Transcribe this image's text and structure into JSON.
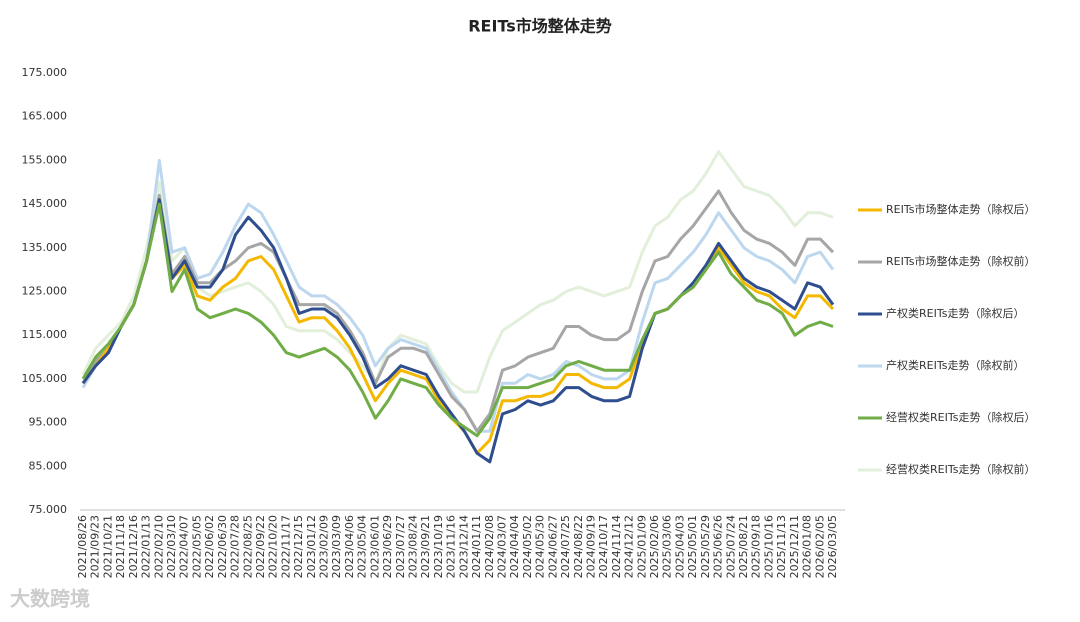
{
  "chart_data": {
    "type": "line",
    "title": "REITs市场整体走势",
    "categories": [
      "2021/08/26",
      "2021/09/23",
      "2021/10/21",
      "2021/11/18",
      "2021/12/16",
      "2022/01/13",
      "2022/02/10",
      "2022/03/10",
      "2022/04/07",
      "2022/05/05",
      "2022/06/02",
      "2022/06/30",
      "2022/07/28",
      "2022/08/25",
      "2022/09/22",
      "2022/10/20",
      "2022/11/17",
      "2022/12/15",
      "2023/01/12",
      "2023/02/09",
      "2023/03/09",
      "2023/04/06",
      "2023/05/04",
      "2023/06/01",
      "2023/06/29",
      "2023/07/27",
      "2023/08/24",
      "2023/09/21",
      "2023/10/19",
      "2023/11/16",
      "2023/12/14",
      "2024/01/11",
      "2024/02/08",
      "2024/03/07",
      "2024/04/04",
      "2024/05/02",
      "2024/05/30",
      "2024/06/27",
      "2024/07/25",
      "2024/08/22",
      "2024/09/19",
      "2024/10/17",
      "2024/11/14",
      "2024/12/12",
      "2025/01/09",
      "2025/02/06",
      "2025/03/06",
      "2025/04/03",
      "2025/05/01",
      "2025/05/29",
      "2025/06/26",
      "2025/07/24",
      "2025/08/21",
      "2025/09/18",
      "2025/10/16",
      "2025/11/13",
      "2025/12/11",
      "2026/01/08",
      "2026/02/05",
      "2026/03/05"
    ],
    "series": [
      {
        "name": "REITs市场整体走势（除权后）",
        "color": "#f5b800",
        "values": [
          104,
          108,
          112,
          117,
          122,
          132,
          146,
          128,
          131,
          124,
          123,
          126,
          128,
          132,
          133,
          130,
          124,
          118,
          119,
          119,
          116,
          112,
          106,
          100,
          104,
          107,
          106,
          105,
          100,
          96,
          93,
          88,
          91,
          100,
          100,
          101,
          101,
          102,
          106,
          106,
          104,
          103,
          103,
          105,
          113,
          120,
          121,
          124,
          126,
          130,
          135,
          131,
          127,
          125,
          124,
          121,
          119,
          124,
          124,
          121
        ]
      },
      {
        "name": "REITs市场整体走势（除权前）",
        "color": "#a6a6a6",
        "values": [
          104,
          109,
          112,
          117,
          122,
          132,
          147,
          129,
          133,
          127,
          127,
          130,
          132,
          135,
          136,
          134,
          128,
          122,
          122,
          122,
          120,
          116,
          111,
          104,
          110,
          112,
          112,
          111,
          106,
          101,
          98,
          93,
          97,
          107,
          108,
          110,
          111,
          112,
          117,
          117,
          115,
          114,
          114,
          116,
          125,
          132,
          133,
          137,
          140,
          144,
          148,
          143,
          139,
          137,
          136,
          134,
          131,
          137,
          137,
          134
        ]
      },
      {
        "name": "产权类REITs走势（除权后）",
        "color": "#2e4e8f",
        "values": [
          104,
          108,
          111,
          117,
          122,
          132,
          146,
          128,
          132,
          126,
          126,
          130,
          138,
          142,
          139,
          135,
          128,
          120,
          121,
          121,
          119,
          115,
          110,
          103,
          105,
          108,
          107,
          106,
          101,
          97,
          93,
          88,
          86,
          97,
          98,
          100,
          99,
          100,
          103,
          103,
          101,
          100,
          100,
          101,
          112,
          120,
          121,
          124,
          127,
          131,
          136,
          132,
          128,
          126,
          125,
          123,
          121,
          127,
          126,
          122
        ]
      },
      {
        "name": "产权类REITs走势（除权前）",
        "color": "#bdd7ee",
        "values": [
          103,
          108,
          111,
          117,
          122,
          132,
          155,
          134,
          135,
          128,
          129,
          134,
          140,
          145,
          143,
          138,
          132,
          126,
          124,
          124,
          122,
          119,
          115,
          108,
          112,
          114,
          113,
          112,
          107,
          102,
          98,
          93,
          93,
          104,
          104,
          106,
          105,
          106,
          109,
          108,
          106,
          105,
          105,
          107,
          118,
          127,
          128,
          131,
          134,
          138,
          143,
          139,
          135,
          133,
          132,
          130,
          127,
          133,
          134,
          130
        ]
      },
      {
        "name": "经营权类REITs走势（除权后）",
        "color": "#70ad47",
        "values": [
          105,
          110,
          113,
          117,
          122,
          132,
          145,
          125,
          130,
          121,
          119,
          120,
          121,
          120,
          118,
          115,
          111,
          110,
          111,
          112,
          110,
          107,
          102,
          96,
          100,
          105,
          104,
          103,
          99,
          96,
          94,
          92,
          96,
          103,
          103,
          103,
          104,
          105,
          108,
          109,
          108,
          107,
          107,
          107,
          114,
          120,
          121,
          124,
          126,
          130,
          134,
          129,
          126,
          123,
          122,
          120,
          115,
          117,
          118,
          117
        ]
      },
      {
        "name": "经营权类REITs走势（除权前）",
        "color": "#e2efda",
        "values": [
          106,
          112,
          115,
          118,
          124,
          135,
          150,
          132,
          135,
          126,
          124,
          125,
          126,
          127,
          125,
          122,
          117,
          116,
          116,
          116,
          114,
          111,
          108,
          104,
          112,
          115,
          114,
          113,
          108,
          104,
          102,
          102,
          110,
          116,
          118,
          120,
          122,
          123,
          125,
          126,
          125,
          124,
          125,
          126,
          134,
          140,
          142,
          146,
          148,
          152,
          157,
          153,
          149,
          148,
          147,
          144,
          140,
          143,
          143,
          142
        ]
      }
    ],
    "ylim": [
      75,
      175
    ],
    "yticks": [
      {
        "value": 75,
        "label": "75.000"
      },
      {
        "value": 85,
        "label": "85.000"
      },
      {
        "value": 95,
        "label": "95.000"
      },
      {
        "value": 105,
        "label": "105.000"
      },
      {
        "value": 115,
        "label": "115.000"
      },
      {
        "value": 125,
        "label": "125.000"
      },
      {
        "value": 135,
        "label": "135.000"
      },
      {
        "value": 145,
        "label": "145.000"
      },
      {
        "value": 155,
        "label": "155.000"
      },
      {
        "value": 165,
        "label": "165.000"
      },
      {
        "value": 175,
        "label": "175.000"
      }
    ],
    "grid": false,
    "legend": "right"
  },
  "watermark": "大数跨境"
}
